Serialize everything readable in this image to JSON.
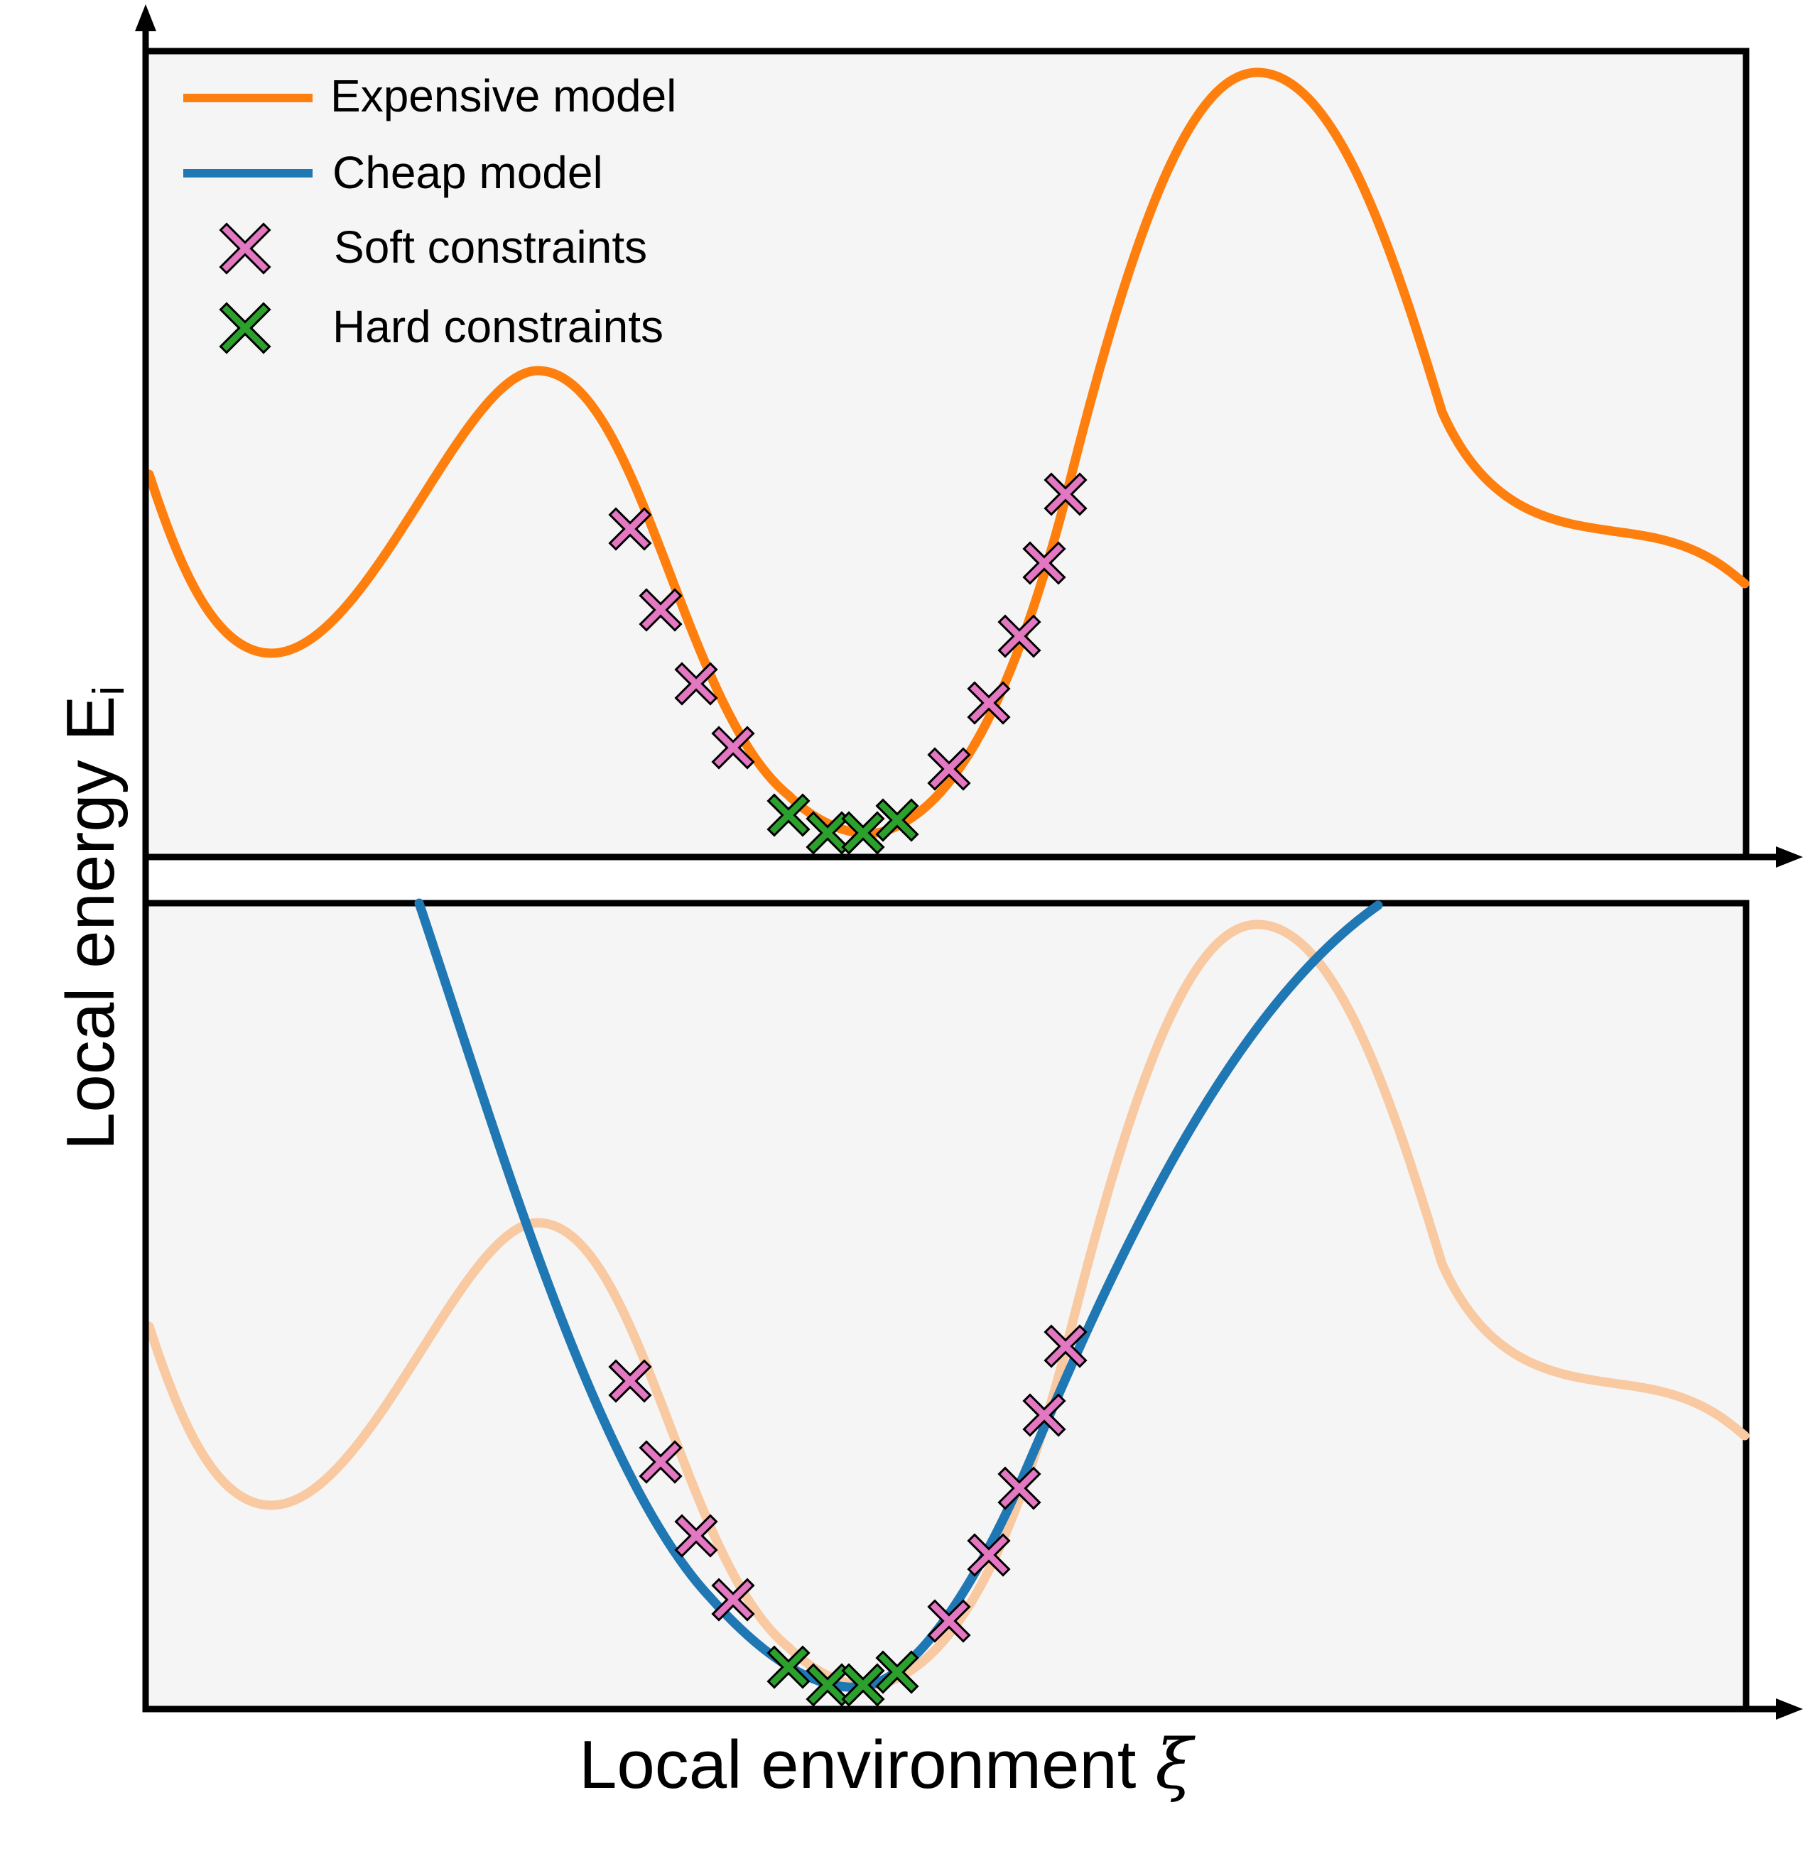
{
  "legend": {
    "expensive": "Expensive model",
    "cheap": "Cheap model",
    "soft": "Soft constraints",
    "hard": "Hard constraints"
  },
  "axes": {
    "ylabel_main": "Local energy E",
    "ylabel_sub": "i",
    "xlabel_main": "Local environment ",
    "xlabel_symbol": "ξ"
  },
  "colors": {
    "expensive": "#ff7f0e",
    "expensive_faded": "#f9c9a1",
    "cheap": "#1f77b4",
    "soft": "#e377c2",
    "hard": "#2ca02c",
    "panel_bg": "#f5f5f5",
    "axis": "#000000"
  },
  "panels": [
    "top",
    "bottom"
  ]
}
